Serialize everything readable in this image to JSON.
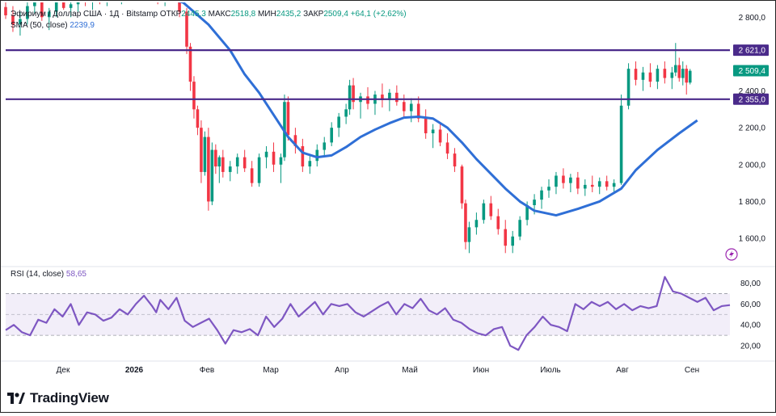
{
  "header": {
    "symbol": "Эфириум / Доллар США · 1Д · Bitstamp",
    "open_label": "ОТКР",
    "open": "2445,3",
    "high_label": "МАКС",
    "high": "2518,8",
    "low_label": "МИН",
    "low": "2435,2",
    "close_label": "ЗАКР",
    "close": "2509,4",
    "change": "+64,1 (+2,62%)",
    "sma_label": "SMA (50, close)",
    "sma_value": "2239,9"
  },
  "rsi_legend": {
    "label": "RSI (14, close)",
    "value": "58,65"
  },
  "brand": {
    "name": "TradingView"
  },
  "chart_data": [
    {
      "type": "candlestick",
      "title": "Эфириум / Доллар США",
      "y_ticks": [
        "2 800,0",
        "2 600,0",
        "2 400,0",
        "2 200,0",
        "2 000,0",
        "1 800,0",
        "1 600,0"
      ],
      "ylim": [
        1460,
        2880
      ],
      "x_ticks": [
        "Дек",
        "2026",
        "Фев",
        "Мар",
        "Апр",
        "Май",
        "Июн",
        "Июль",
        "Авг",
        "Сен"
      ],
      "price_labels": [
        {
          "text": "2 621,0",
          "value": 2621,
          "color": "#4a2a8a"
        },
        {
          "text": "2 509,4",
          "value": 2509.4,
          "color": "#089981"
        },
        {
          "text": "2 355,0",
          "value": 2355,
          "color": "#4a2a8a"
        }
      ],
      "horizontal_lines": [
        2621,
        2355
      ],
      "sma": {
        "name": "SMA (50, close)",
        "color": "#2f6fd6",
        "points": [
          [
            0.195,
            2930
          ],
          [
            0.245,
            2880
          ],
          [
            0.28,
            2760
          ],
          [
            0.31,
            2620
          ],
          [
            0.33,
            2490
          ],
          [
            0.35,
            2390
          ],
          [
            0.37,
            2270
          ],
          [
            0.39,
            2150
          ],
          [
            0.41,
            2065
          ],
          [
            0.43,
            2040
          ],
          [
            0.45,
            2050
          ],
          [
            0.47,
            2095
          ],
          [
            0.49,
            2150
          ],
          [
            0.51,
            2190
          ],
          [
            0.53,
            2225
          ],
          [
            0.55,
            2255
          ],
          [
            0.57,
            2260
          ],
          [
            0.59,
            2250
          ],
          [
            0.61,
            2200
          ],
          [
            0.63,
            2120
          ],
          [
            0.65,
            2030
          ],
          [
            0.67,
            1950
          ],
          [
            0.69,
            1870
          ],
          [
            0.71,
            1800
          ],
          [
            0.73,
            1750
          ],
          [
            0.76,
            1725
          ],
          [
            0.79,
            1760
          ],
          [
            0.82,
            1800
          ],
          [
            0.85,
            1870
          ],
          [
            0.87,
            1970
          ],
          [
            0.9,
            2080
          ],
          [
            0.93,
            2170
          ],
          [
            0.955,
            2240
          ]
        ]
      },
      "candles": [
        [
          0.0,
          2855,
          2890,
          2790,
          2810
        ],
        [
          0.01,
          2810,
          2860,
          2720,
          2760
        ],
        [
          0.02,
          2760,
          2830,
          2700,
          2790
        ],
        [
          0.03,
          2790,
          2880,
          2760,
          2860
        ],
        [
          0.04,
          2860,
          2920,
          2820,
          2880
        ],
        [
          0.05,
          2880,
          2900,
          2780,
          2800
        ],
        [
          0.06,
          2800,
          2850,
          2730,
          2830
        ],
        [
          0.07,
          2830,
          2900,
          2800,
          2880
        ],
        [
          0.08,
          2880,
          2930,
          2840,
          2850
        ],
        [
          0.09,
          2850,
          2890,
          2800,
          2870
        ],
        [
          0.1,
          2870,
          2920,
          2830,
          2900
        ],
        [
          0.11,
          2900,
          2940,
          2860,
          2880
        ],
        [
          0.12,
          2880,
          2920,
          2840,
          2910
        ],
        [
          0.13,
          2910,
          2950,
          2870,
          2890
        ],
        [
          0.14,
          2890,
          2940,
          2860,
          2930
        ],
        [
          0.15,
          2930,
          2960,
          2880,
          2900
        ],
        [
          0.16,
          2900,
          2950,
          2870,
          2920
        ],
        [
          0.17,
          2920,
          2970,
          2880,
          2940
        ],
        [
          0.18,
          2940,
          2990,
          2900,
          2960
        ],
        [
          0.19,
          2960,
          2990,
          2910,
          2940
        ],
        [
          0.2,
          2940,
          2980,
          2890,
          2930
        ],
        [
          0.21,
          2930,
          2970,
          2870,
          2900
        ],
        [
          0.22,
          2900,
          2960,
          2860,
          2950
        ],
        [
          0.23,
          2950,
          2990,
          2880,
          2910
        ],
        [
          0.24,
          2910,
          2950,
          2800,
          2830
        ],
        [
          0.25,
          2830,
          2850,
          2600,
          2640
        ],
        [
          0.255,
          2640,
          2660,
          2400,
          2450
        ],
        [
          0.26,
          2450,
          2480,
          2250,
          2300
        ],
        [
          0.265,
          2300,
          2320,
          2160,
          2200
        ],
        [
          0.27,
          2200,
          2240,
          1900,
          1960
        ],
        [
          0.275,
          1960,
          2180,
          1940,
          2150
        ],
        [
          0.28,
          2150,
          2200,
          1750,
          1800
        ],
        [
          0.285,
          1800,
          2120,
          1780,
          2080
        ],
        [
          0.29,
          2080,
          2110,
          1950,
          1990
        ],
        [
          0.295,
          1990,
          2050,
          1900,
          2040
        ],
        [
          0.3,
          2040,
          2080,
          1930,
          1960
        ],
        [
          0.31,
          1960,
          2020,
          1910,
          1990
        ],
        [
          0.32,
          1990,
          2060,
          1950,
          2040
        ],
        [
          0.33,
          2040,
          2080,
          1960,
          1980
        ],
        [
          0.34,
          1980,
          2020,
          1880,
          1900
        ],
        [
          0.35,
          1900,
          2060,
          1880,
          2040
        ],
        [
          0.36,
          2040,
          2100,
          1980,
          2070
        ],
        [
          0.37,
          2070,
          2120,
          1960,
          2000
        ],
        [
          0.38,
          2000,
          2060,
          1900,
          2040
        ],
        [
          0.385,
          2040,
          2380,
          2020,
          2340
        ],
        [
          0.39,
          2340,
          2370,
          2130,
          2160
        ],
        [
          0.4,
          2160,
          2200,
          2060,
          2100
        ],
        [
          0.41,
          2100,
          2140,
          1960,
          1990
        ],
        [
          0.42,
          1990,
          2050,
          1950,
          2020
        ],
        [
          0.43,
          2020,
          2110,
          1990,
          2080
        ],
        [
          0.44,
          2080,
          2150,
          2050,
          2120
        ],
        [
          0.45,
          2120,
          2230,
          2100,
          2200
        ],
        [
          0.46,
          2200,
          2280,
          2150,
          2260
        ],
        [
          0.47,
          2260,
          2330,
          2220,
          2300
        ],
        [
          0.475,
          2300,
          2460,
          2270,
          2430
        ],
        [
          0.48,
          2430,
          2470,
          2300,
          2340
        ],
        [
          0.49,
          2340,
          2390,
          2250,
          2370
        ],
        [
          0.5,
          2370,
          2420,
          2300,
          2330
        ],
        [
          0.51,
          2330,
          2400,
          2270,
          2380
        ],
        [
          0.52,
          2380,
          2440,
          2310,
          2350
        ],
        [
          0.53,
          2350,
          2410,
          2290,
          2390
        ],
        [
          0.54,
          2390,
          2430,
          2320,
          2340
        ],
        [
          0.55,
          2340,
          2380,
          2260,
          2290
        ],
        [
          0.56,
          2290,
          2360,
          2230,
          2330
        ],
        [
          0.57,
          2330,
          2370,
          2230,
          2250
        ],
        [
          0.58,
          2250,
          2300,
          2140,
          2170
        ],
        [
          0.59,
          2170,
          2220,
          2090,
          2190
        ],
        [
          0.6,
          2190,
          2230,
          2100,
          2120
        ],
        [
          0.61,
          2120,
          2170,
          2030,
          2060
        ],
        [
          0.62,
          2060,
          2090,
          1960,
          1990
        ],
        [
          0.63,
          1990,
          2000,
          1760,
          1790
        ],
        [
          0.635,
          1790,
          1810,
          1540,
          1580
        ],
        [
          0.64,
          1580,
          1690,
          1520,
          1660
        ],
        [
          0.65,
          1660,
          1740,
          1620,
          1700
        ],
        [
          0.66,
          1700,
          1810,
          1680,
          1790
        ],
        [
          0.67,
          1790,
          1830,
          1700,
          1720
        ],
        [
          0.68,
          1720,
          1760,
          1620,
          1650
        ],
        [
          0.69,
          1650,
          1700,
          1520,
          1560
        ],
        [
          0.7,
          1560,
          1640,
          1520,
          1610
        ],
        [
          0.71,
          1610,
          1720,
          1590,
          1700
        ],
        [
          0.72,
          1700,
          1800,
          1670,
          1780
        ],
        [
          0.73,
          1780,
          1840,
          1730,
          1810
        ],
        [
          0.74,
          1810,
          1880,
          1760,
          1860
        ],
        [
          0.75,
          1860,
          1920,
          1820,
          1880
        ],
        [
          0.76,
          1880,
          1960,
          1840,
          1940
        ],
        [
          0.77,
          1940,
          1980,
          1870,
          1900
        ],
        [
          0.78,
          1900,
          1950,
          1850,
          1930
        ],
        [
          0.79,
          1930,
          1960,
          1840,
          1870
        ],
        [
          0.8,
          1870,
          1920,
          1830,
          1890
        ],
        [
          0.81,
          1890,
          1940,
          1850,
          1880
        ],
        [
          0.82,
          1880,
          1930,
          1840,
          1910
        ],
        [
          0.83,
          1910,
          1940,
          1860,
          1880
        ],
        [
          0.84,
          1880,
          1920,
          1850,
          1900
        ],
        [
          0.85,
          1900,
          2380,
          1890,
          2320
        ],
        [
          0.86,
          2320,
          2550,
          2300,
          2520
        ],
        [
          0.87,
          2520,
          2560,
          2430,
          2460
        ],
        [
          0.88,
          2460,
          2530,
          2400,
          2500
        ],
        [
          0.89,
          2500,
          2550,
          2420,
          2450
        ],
        [
          0.9,
          2450,
          2540,
          2410,
          2520
        ],
        [
          0.91,
          2520,
          2560,
          2440,
          2470
        ],
        [
          0.92,
          2470,
          2530,
          2410,
          2500
        ],
        [
          0.925,
          2500,
          2660,
          2480,
          2540
        ],
        [
          0.93,
          2540,
          2580,
          2450,
          2470
        ],
        [
          0.935,
          2470,
          2560,
          2430,
          2520
        ],
        [
          0.94,
          2520,
          2540,
          2380,
          2445
        ],
        [
          0.945,
          2445,
          2519,
          2435,
          2509
        ]
      ]
    },
    {
      "type": "line",
      "title": "RSI (14, close)",
      "y_ticks": [
        "80,00",
        "60,00",
        "40,00",
        "20,00"
      ],
      "ylim": [
        10,
        92
      ],
      "band": [
        30,
        70
      ],
      "midline": 50,
      "color": "#7e57c2",
      "points": [
        [
          0.0,
          35
        ],
        [
          0.02,
          40
        ],
        [
          0.04,
          33
        ],
        [
          0.06,
          30
        ],
        [
          0.08,
          45
        ],
        [
          0.1,
          42
        ],
        [
          0.12,
          55
        ],
        [
          0.14,
          48
        ],
        [
          0.16,
          60
        ],
        [
          0.18,
          40
        ],
        [
          0.2,
          52
        ],
        [
          0.22,
          50
        ],
        [
          0.24,
          44
        ],
        [
          0.26,
          47
        ],
        [
          0.28,
          55
        ],
        [
          0.3,
          50
        ],
        [
          0.32,
          60
        ],
        [
          0.34,
          68
        ],
        [
          0.36,
          58
        ],
        [
          0.37,
          52
        ],
        [
          0.38,
          64
        ],
        [
          0.4,
          55
        ],
        [
          0.42,
          66
        ],
        [
          0.44,
          44
        ],
        [
          0.46,
          38
        ],
        [
          0.48,
          42
        ],
        [
          0.5,
          46
        ],
        [
          0.52,
          35
        ],
        [
          0.54,
          22
        ],
        [
          0.56,
          35
        ],
        [
          0.58,
          33
        ],
        [
          0.6,
          36
        ],
        [
          0.62,
          30
        ],
        [
          0.64,
          48
        ],
        [
          0.66,
          38
        ],
        [
          0.68,
          46
        ],
        [
          0.7,
          60
        ],
        [
          0.72,
          48
        ],
        [
          0.74,
          55
        ],
        [
          0.76,
          62
        ],
        [
          0.78,
          50
        ],
        [
          0.8,
          60
        ],
        [
          0.82,
          58
        ],
        [
          0.84,
          60
        ],
        [
          0.86,
          52
        ],
        [
          0.88,
          48
        ],
        [
          0.9,
          53
        ],
        [
          0.92,
          58
        ],
        [
          0.94,
          62
        ],
        [
          0.96,
          50
        ],
        [
          0.98,
          60
        ],
        [
          1.0,
          56
        ],
        [
          1.02,
          65
        ],
        [
          1.04,
          54
        ],
        [
          1.06,
          50
        ],
        [
          1.08,
          56
        ],
        [
          1.1,
          45
        ],
        [
          1.12,
          42
        ],
        [
          1.14,
          36
        ],
        [
          1.16,
          32
        ],
        [
          1.18,
          30
        ],
        [
          1.2,
          36
        ],
        [
          1.22,
          38
        ],
        [
          1.24,
          20
        ],
        [
          1.26,
          16
        ],
        [
          1.28,
          30
        ],
        [
          1.3,
          38
        ],
        [
          1.32,
          48
        ],
        [
          1.34,
          40
        ],
        [
          1.36,
          38
        ],
        [
          1.38,
          34
        ],
        [
          1.4,
          60
        ],
        [
          1.42,
          55
        ],
        [
          1.44,
          62
        ],
        [
          1.46,
          58
        ],
        [
          1.48,
          62
        ],
        [
          1.5,
          55
        ],
        [
          1.52,
          60
        ],
        [
          1.54,
          54
        ],
        [
          1.56,
          58
        ],
        [
          1.58,
          56
        ],
        [
          1.6,
          58
        ],
        [
          1.62,
          86
        ],
        [
          1.64,
          72
        ],
        [
          1.66,
          70
        ],
        [
          1.68,
          66
        ],
        [
          1.7,
          62
        ],
        [
          1.72,
          66
        ],
        [
          1.74,
          54
        ],
        [
          1.76,
          58
        ],
        [
          1.78,
          59
        ]
      ]
    }
  ]
}
